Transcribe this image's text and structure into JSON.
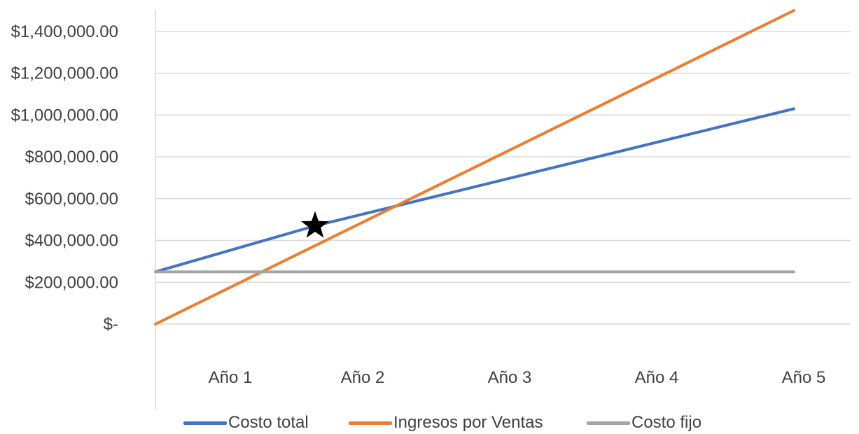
{
  "chart_data": {
    "type": "line",
    "title": "",
    "xlabel": "",
    "ylabel": "",
    "categories": [
      "Año 1",
      "Año 2",
      "Año 3",
      "Año 4",
      "Año 5"
    ],
    "ylim": [
      0,
      1500000
    ],
    "yticks": [
      0,
      200000,
      400000,
      600000,
      800000,
      1000000,
      1200000,
      1400000
    ],
    "ytick_labels": [
      "$-",
      "$200,000.00",
      "$400,000.00",
      "$600,000.00",
      "$800,000.00",
      "$1,000,000.00",
      "$1,200,000.00",
      "$1,400,000.00"
    ],
    "grid": true,
    "legend_position": "bottom",
    "series": [
      {
        "name": "Costo total",
        "color": "#4472C4",
        "x": [
          0,
          1,
          4
        ],
        "values": [
          250000,
          470000,
          1030000
        ]
      },
      {
        "name": "Ingresos por Ventas",
        "color": "#ED7D31",
        "x": [
          0,
          4
        ],
        "values": [
          0,
          1500000
        ]
      },
      {
        "name": "Costo fijo",
        "color": "#A5A5A5",
        "x": [
          0,
          4
        ],
        "values": [
          250000,
          250000
        ]
      }
    ],
    "annotations": [
      {
        "type": "star-marker",
        "name": "break-even-point",
        "x": 1,
        "y": 470000,
        "color": "#000000"
      }
    ]
  }
}
